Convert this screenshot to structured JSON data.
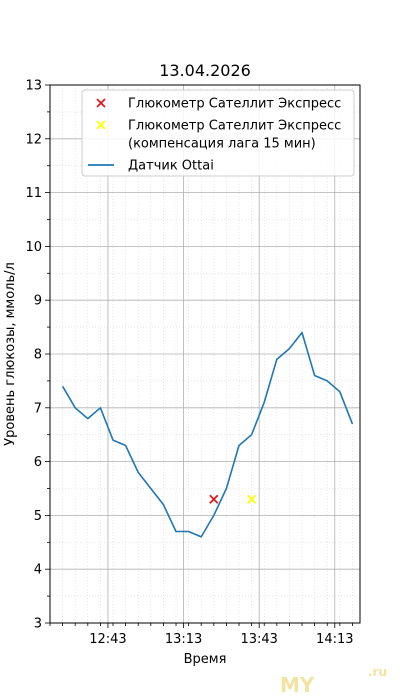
{
  "chart_data": {
    "type": "line",
    "title": "13.04.2026",
    "xlabel": "Время",
    "ylabel": "Уровень глюкозы, ммоль/л",
    "ylim": [
      3,
      13
    ],
    "xlim": [
      "12:20",
      "14:23"
    ],
    "yticks": [
      3,
      4,
      5,
      6,
      7,
      8,
      9,
      10,
      11,
      12,
      13
    ],
    "xticks": [
      "12:43",
      "13:13",
      "13:43",
      "14:13"
    ],
    "grid": true,
    "minor_grid": true,
    "legend_position": "top-right",
    "series": [
      {
        "name": "Глюкометр Сателлит Экспресс",
        "kind": "scatter",
        "marker": "x",
        "color": "#e31a1c",
        "points": [
          {
            "x": "13:25",
            "y": 5.3
          }
        ]
      },
      {
        "name": "Глюкометр Сателлит Экспресс\n(компенсация лага 15 мин)",
        "kind": "scatter",
        "marker": "x",
        "color": "#ffff00",
        "points": [
          {
            "x": "13:40",
            "y": 5.3
          }
        ]
      },
      {
        "name": "Датчик Ottai",
        "kind": "line",
        "color": "#1f77b4",
        "points": [
          {
            "x": "12:25",
            "y": 7.4
          },
          {
            "x": "12:30",
            "y": 7.0
          },
          {
            "x": "12:35",
            "y": 6.8
          },
          {
            "x": "12:40",
            "y": 7.0
          },
          {
            "x": "12:45",
            "y": 6.4
          },
          {
            "x": "12:50",
            "y": 6.3
          },
          {
            "x": "12:55",
            "y": 5.8
          },
          {
            "x": "13:00",
            "y": 5.5
          },
          {
            "x": "13:05",
            "y": 5.2
          },
          {
            "x": "13:10",
            "y": 4.7
          },
          {
            "x": "13:15",
            "y": 4.7
          },
          {
            "x": "13:20",
            "y": 4.6
          },
          {
            "x": "13:25",
            "y": 5.0
          },
          {
            "x": "13:30",
            "y": 5.5
          },
          {
            "x": "13:35",
            "y": 6.3
          },
          {
            "x": "13:40",
            "y": 6.5
          },
          {
            "x": "13:45",
            "y": 7.1
          },
          {
            "x": "13:50",
            "y": 7.9
          },
          {
            "x": "13:55",
            "y": 8.1
          },
          {
            "x": "14:00",
            "y": 8.4
          },
          {
            "x": "14:05",
            "y": 7.6
          },
          {
            "x": "14:10",
            "y": 7.5
          },
          {
            "x": "14:15",
            "y": 7.3
          },
          {
            "x": "14:20",
            "y": 6.7
          }
        ]
      }
    ]
  },
  "watermark": {
    "text": "MY",
    "suffix": ".ru",
    "color": "#f3e3a0"
  }
}
